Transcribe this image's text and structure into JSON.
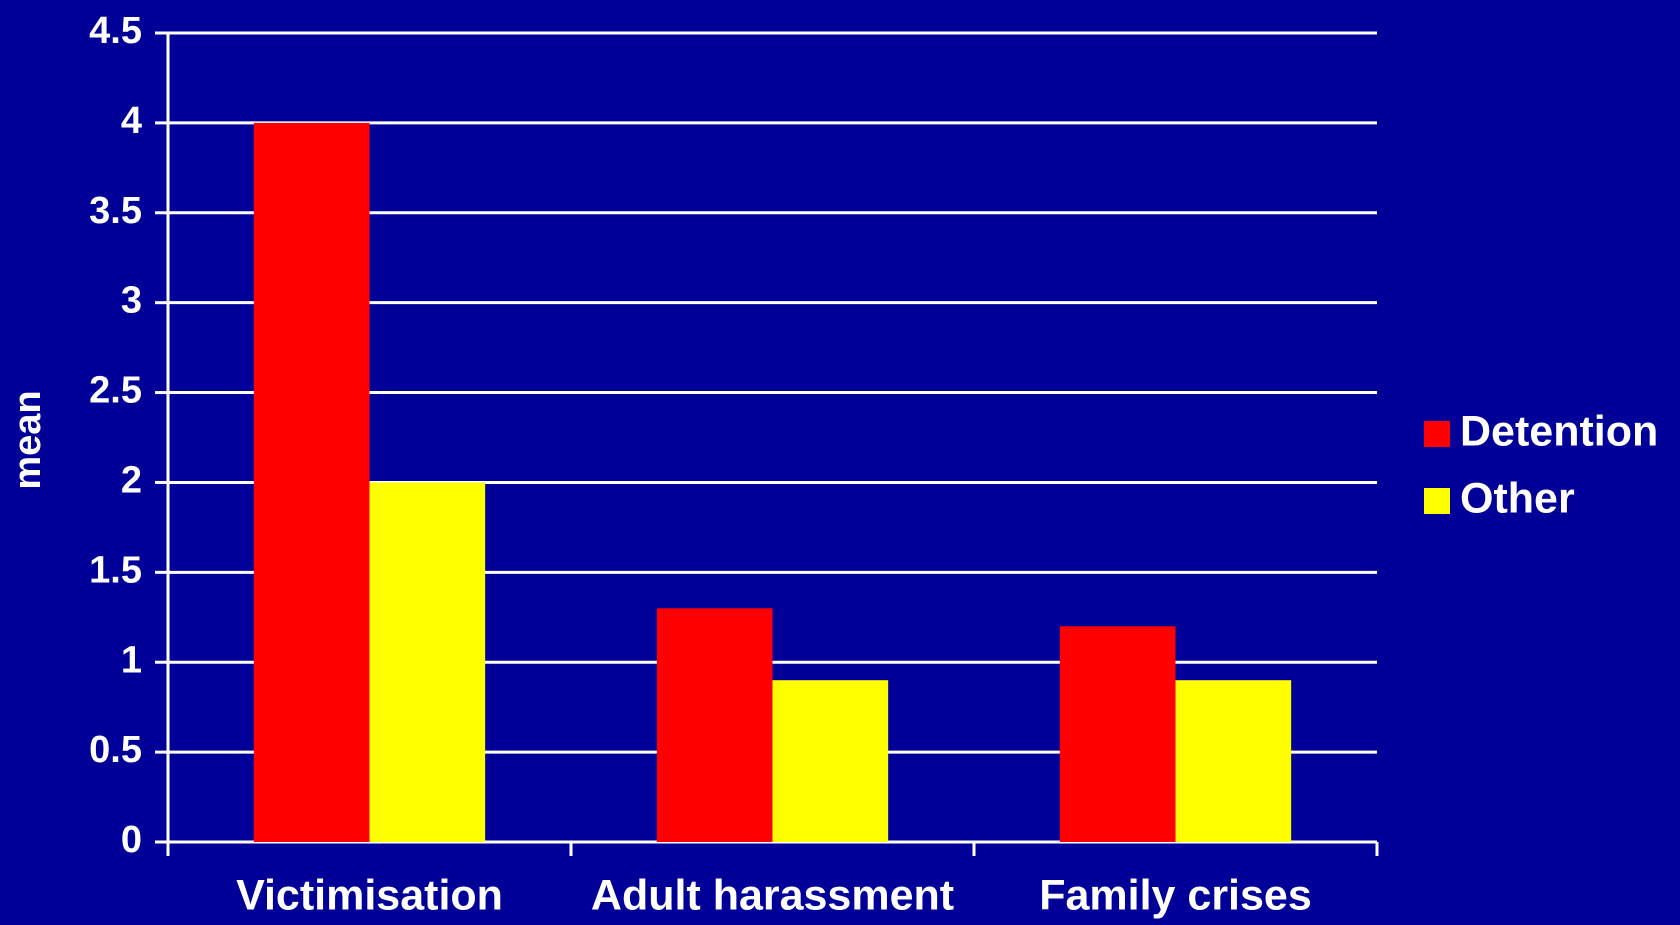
{
  "chart_data": {
    "type": "bar",
    "y_label": "mean",
    "categories": [
      "Victimisation",
      "Adult harassment",
      "Family crises"
    ],
    "series": [
      {
        "name": "Detention",
        "color": "#ff0000",
        "values": [
          4,
          1.3,
          1.2
        ]
      },
      {
        "name": "Other",
        "color": "#ffff00",
        "values": [
          2,
          0.9,
          0.9
        ]
      }
    ],
    "ylim": [
      0,
      4.5
    ],
    "yticks": [
      0,
      0.5,
      1,
      1.5,
      2,
      2.5,
      3,
      3.5,
      4,
      4.5
    ],
    "grid": true,
    "legend": "right"
  }
}
